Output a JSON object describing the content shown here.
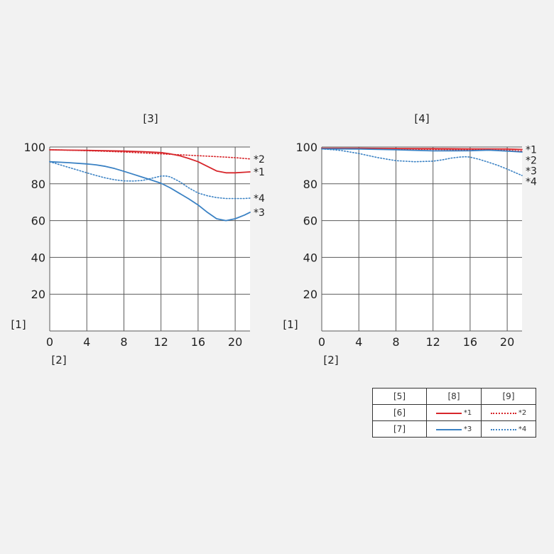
{
  "chart_data": [
    {
      "type": "line",
      "title": "[3]",
      "ylabel": "[1]",
      "xlabel": "[2]",
      "xlim": [
        0,
        21.6
      ],
      "ylim": [
        0,
        100
      ],
      "xticks": [
        "0",
        "4",
        "8",
        "12",
        "16",
        "20"
      ],
      "yticks": [
        "20",
        "40",
        "60",
        "80",
        "100"
      ],
      "grid": true,
      "series": [
        {
          "name": "*1",
          "color": "#d7262b",
          "style": "solid",
          "x": [
            0,
            2,
            4,
            6,
            8,
            10,
            12,
            13,
            14,
            15,
            16,
            17,
            18,
            19,
            20,
            21,
            21.6
          ],
          "y": [
            98.5,
            98.3,
            98.2,
            98.0,
            97.8,
            97.5,
            97.0,
            96.3,
            95.3,
            93.8,
            92.0,
            89.5,
            87.0,
            86.0,
            86.0,
            86.3,
            86.5
          ]
        },
        {
          "name": "*2",
          "color": "#d7262b",
          "style": "dotted",
          "x": [
            0,
            2,
            4,
            6,
            8,
            10,
            12,
            14,
            16,
            18,
            20,
            21.6
          ],
          "y": [
            98.5,
            98.3,
            98.0,
            97.7,
            97.3,
            96.8,
            96.3,
            95.8,
            95.3,
            94.8,
            94.2,
            93.5
          ]
        },
        {
          "name": "*3",
          "color": "#3b82c4",
          "style": "solid",
          "x": [
            0,
            2,
            4,
            5,
            6,
            7,
            8,
            9,
            10,
            11,
            12,
            13,
            14,
            15,
            16,
            17,
            18,
            19,
            20,
            21,
            21.6
          ],
          "y": [
            92.0,
            91.5,
            90.8,
            90.3,
            89.5,
            88.3,
            86.8,
            85.2,
            83.6,
            82.0,
            80.3,
            77.8,
            74.8,
            71.8,
            68.5,
            64.5,
            61.0,
            60.0,
            61.0,
            63.0,
            64.5
          ]
        },
        {
          "name": "*4",
          "color": "#3b82c4",
          "style": "dotted",
          "x": [
            0,
            1,
            2,
            3,
            4,
            5,
            6,
            7,
            8,
            9,
            10,
            11,
            12,
            12.5,
            13,
            14,
            15,
            16,
            17,
            18,
            19,
            20,
            21,
            21.6
          ],
          "y": [
            92.0,
            90.5,
            89.0,
            87.5,
            86.0,
            84.5,
            83.2,
            82.2,
            81.6,
            81.5,
            81.8,
            83.0,
            84.2,
            84.3,
            83.8,
            81.2,
            77.8,
            75.0,
            73.5,
            72.5,
            72.0,
            72.0,
            72.0,
            72.2
          ]
        }
      ]
    },
    {
      "type": "line",
      "title": "[4]",
      "ylabel": "[1]",
      "xlabel": "[2]",
      "xlim": [
        0,
        21.6
      ],
      "ylim": [
        0,
        100
      ],
      "xticks": [
        "0",
        "4",
        "8",
        "12",
        "16",
        "20"
      ],
      "yticks": [
        "20",
        "40",
        "60",
        "80",
        "100"
      ],
      "grid": true,
      "series": [
        {
          "name": "*1",
          "color": "#d7262b",
          "style": "solid",
          "x": [
            0,
            4,
            8,
            12,
            16,
            20,
            21.6
          ],
          "y": [
            99.3,
            99.3,
            99.2,
            99.1,
            99.0,
            98.9,
            98.7
          ]
        },
        {
          "name": "*2",
          "color": "#d7262b",
          "style": "dotted",
          "x": [
            0,
            4,
            8,
            12,
            16,
            20,
            21.6
          ],
          "y": [
            99.0,
            99.0,
            98.9,
            98.7,
            98.5,
            98.2,
            97.8
          ]
        },
        {
          "name": "*3",
          "color": "#3b82c4",
          "style": "solid",
          "x": [
            0,
            4,
            8,
            12,
            16,
            18,
            20,
            21.6
          ],
          "y": [
            99.0,
            98.9,
            98.5,
            97.9,
            98.0,
            98.3,
            97.8,
            97.3
          ]
        },
        {
          "name": "*4",
          "color": "#3b82c4",
          "style": "dotted",
          "x": [
            0,
            2,
            4,
            6,
            8,
            10,
            12,
            13,
            14,
            15,
            15.5,
            16,
            17,
            18,
            19,
            20,
            21,
            21.6
          ],
          "y": [
            99.0,
            98.2,
            96.5,
            94.3,
            92.6,
            92.0,
            92.3,
            93.0,
            94.0,
            94.6,
            94.7,
            94.5,
            93.3,
            91.7,
            90.0,
            88.0,
            85.8,
            84.5
          ]
        }
      ]
    }
  ],
  "legend": {
    "header": [
      "[5]",
      "[8]",
      "[9]"
    ],
    "rows": [
      {
        "label": "[6]",
        "solid": "*1",
        "dotted": "*2",
        "color": "#d7262b"
      },
      {
        "label": "[7]",
        "solid": "*3",
        "dotted": "*4",
        "color": "#3b82c4"
      }
    ]
  }
}
